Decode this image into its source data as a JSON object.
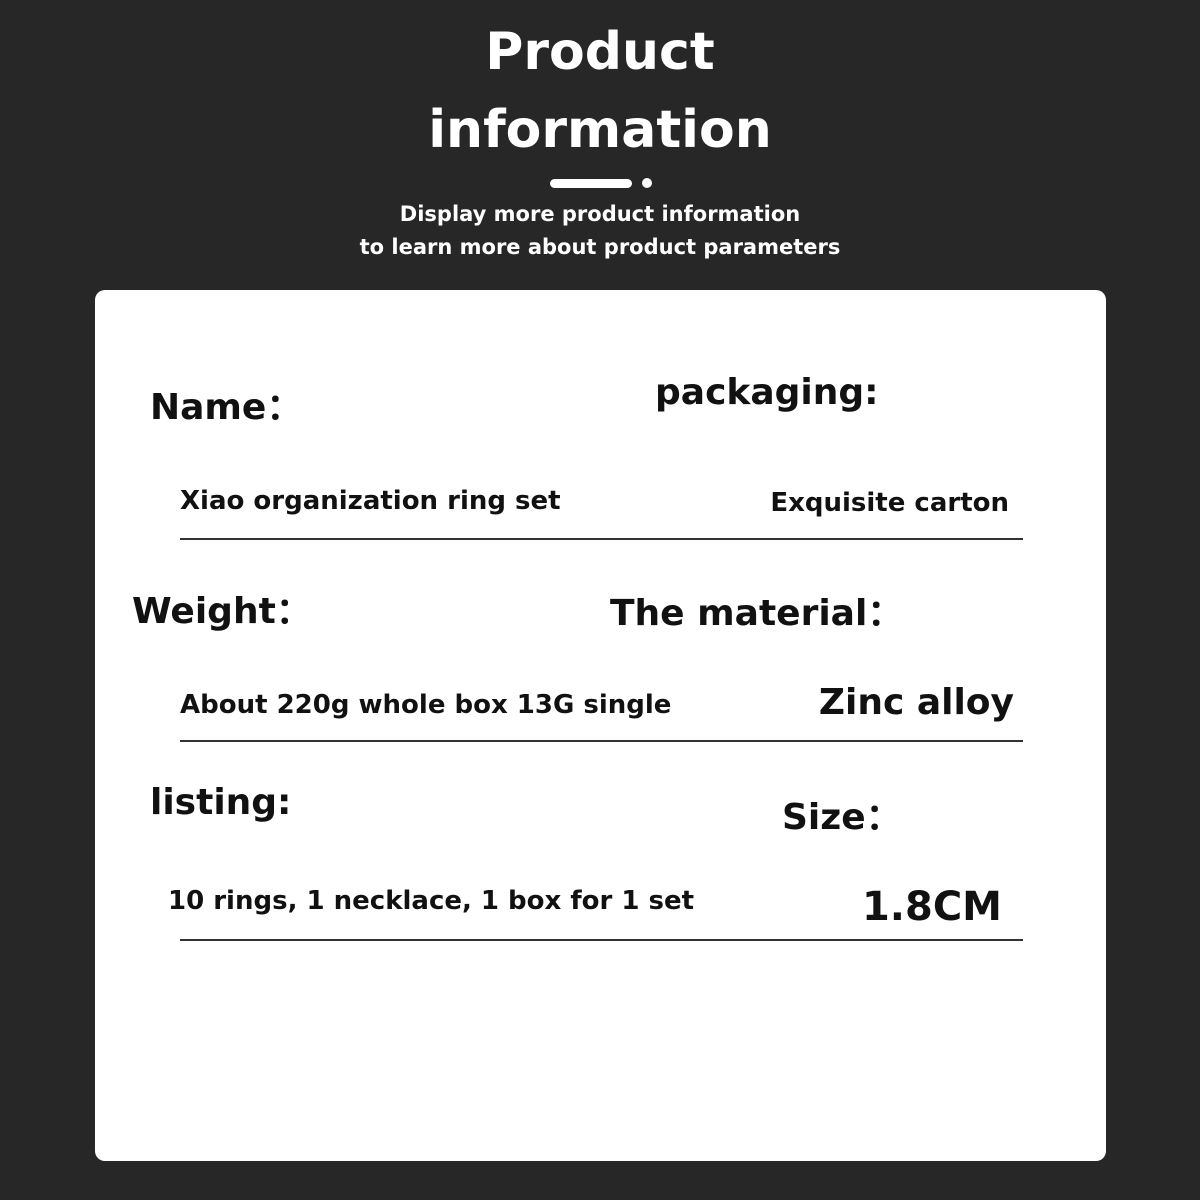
{
  "header": {
    "title_line1": "Product",
    "title_line2": "information",
    "subtitle_line1": "Display more product information",
    "subtitle_line2": "to learn more about product parameters"
  },
  "fields": [
    {
      "label": "Name：",
      "value": "Xiao organization ring set"
    },
    {
      "label": "packaging:",
      "value": "Exquisite carton"
    },
    {
      "label": "Weight：",
      "value": "About 220g whole box 13G single"
    },
    {
      "label": "The material：",
      "value": "Zinc alloy"
    },
    {
      "label": "listing:",
      "value": "10 rings, 1 necklace, 1 box for 1 set"
    },
    {
      "label": "Size：",
      "value": "1.8CM"
    }
  ]
}
